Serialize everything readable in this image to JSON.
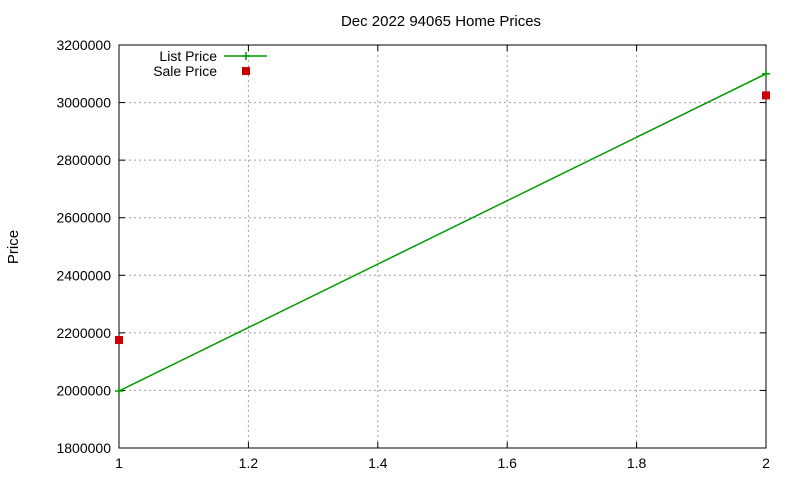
{
  "chart_data": {
    "type": "line",
    "title": "Dec 2022 94065 Home Prices",
    "xlabel": "",
    "ylabel": "Price",
    "xlim": [
      1,
      2
    ],
    "ylim": [
      1800000,
      3200000
    ],
    "x_ticks": [
      "1",
      "1.2",
      "1.4",
      "1.6",
      "1.8",
      "2"
    ],
    "x_tick_values": [
      1,
      1.2,
      1.4,
      1.6,
      1.8,
      2
    ],
    "y_ticks": [
      "1800000",
      "2000000",
      "2200000",
      "2400000",
      "2600000",
      "2800000",
      "3000000",
      "3200000"
    ],
    "y_tick_values": [
      1800000,
      2000000,
      2200000,
      2400000,
      2600000,
      2800000,
      3000000,
      3200000
    ],
    "grid": true,
    "legend_position": "top-left",
    "series": [
      {
        "name": "List Price",
        "style": "line+cross",
        "color": "#009900",
        "x": [
          1,
          2
        ],
        "y": [
          1998000,
          3100000
        ]
      },
      {
        "name": "Sale Price",
        "style": "square",
        "color": "#cc0000",
        "x": [
          1,
          2
        ],
        "y": [
          2175000,
          3025000
        ]
      }
    ]
  }
}
